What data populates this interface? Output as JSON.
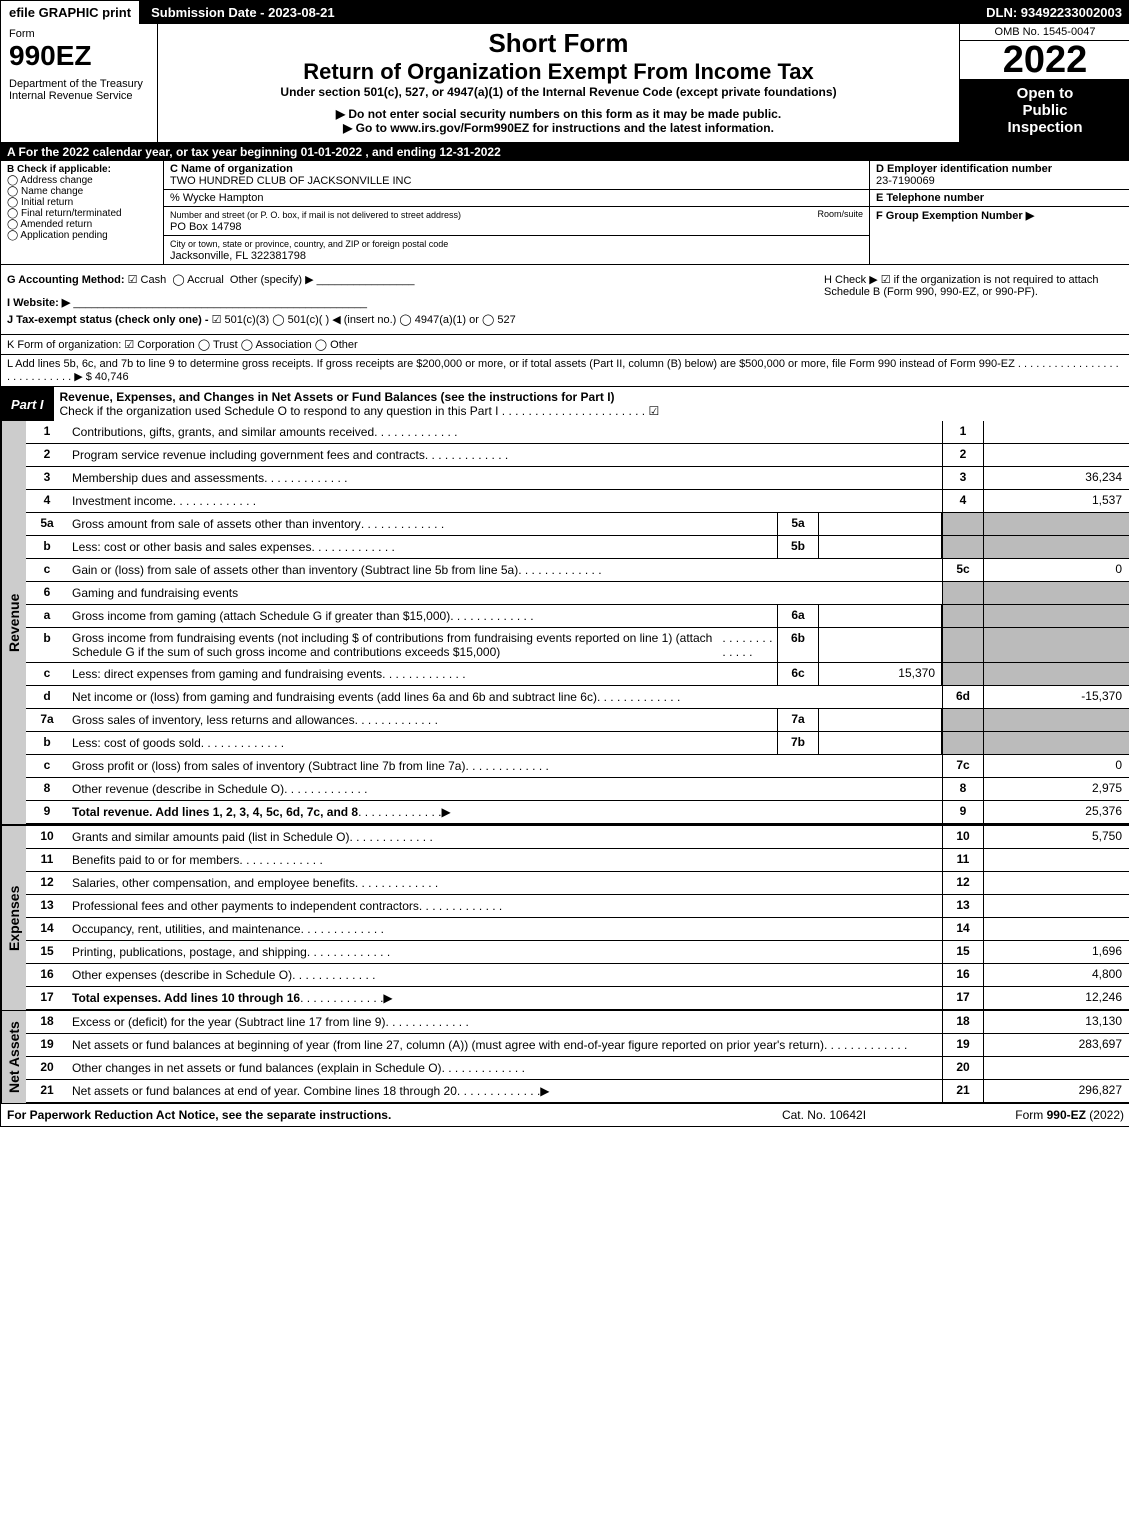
{
  "topbar": {
    "efile": "efile GRAPHIC print",
    "submission": "Submission Date - 2023-08-21",
    "dln": "DLN: 93492233002003"
  },
  "header": {
    "form_label": "Form",
    "form_num": "990EZ",
    "dept1": "Department of the Treasury",
    "dept2": "Internal Revenue Service",
    "short_form": "Short Form",
    "title": "Return of Organization Exempt From Income Tax",
    "sub1": "Under section 501(c), 527, or 4947(a)(1) of the Internal Revenue Code (except private foundations)",
    "sub2": "▶ Do not enter social security numbers on this form as it may be made public.",
    "sub3": "▶ Go to www.irs.gov/Form990EZ for instructions and the latest information.",
    "omb": "OMB No. 1545-0047",
    "year": "2022",
    "open1": "Open to",
    "open2": "Public",
    "open3": "Inspection"
  },
  "section_a": "A  For the 2022 calendar year, or tax year beginning 01-01-2022 , and ending 12-31-2022",
  "box_b": {
    "label": "B  Check if applicable:",
    "opts": [
      "Address change",
      "Name change",
      "Initial return",
      "Final return/terminated",
      "Amended return",
      "Application pending"
    ]
  },
  "box_c": {
    "name_label": "C Name of organization",
    "name": "TWO HUNDRED CLUB OF JACKSONVILLE INC",
    "care_of": "% Wycke Hampton",
    "addr_label": "Number and street (or P. O. box, if mail is not delivered to street address)",
    "addr": "PO Box 14798",
    "room_label": "Room/suite",
    "city_label": "City or town, state or province, country, and ZIP or foreign postal code",
    "city": "Jacksonville, FL  322381798"
  },
  "box_d": {
    "label": "D Employer identification number",
    "ein": "23-7190069",
    "tel_label": "E Telephone number",
    "f_label": "F Group Exemption Number  ▶"
  },
  "gh": {
    "g_label": "G Accounting Method:",
    "g_cash": "Cash",
    "g_accrual": "Accrual",
    "g_other": "Other (specify) ▶",
    "i_label": "I Website: ▶",
    "j_label": "J Tax-exempt status (check only one) -",
    "j_501c3": "501(c)(3)",
    "j_501c": "501(c)(  ) ◀ (insert no.)",
    "j_4947": "4947(a)(1) or",
    "j_527": "527",
    "h_label": "H  Check ▶ ☑ if the organization is not required to attach Schedule B (Form 990, 990-EZ, or 990-PF)."
  },
  "k_line": "K Form of organization:  ☑ Corporation  ◯ Trust  ◯ Association  ◯ Other",
  "l_line": "L Add lines 5b, 6c, and 7b to line 9 to determine gross receipts. If gross receipts are $200,000 or more, or if total assets (Part II, column (B) below) are $500,000 or more, file Form 990 instead of Form 990-EZ . . . . . . . . . . . . . . . . . . . . . . . . . . . . ▶ $ 40,746",
  "part1": {
    "tab": "Part I",
    "desc": "Revenue, Expenses, and Changes in Net Assets or Fund Balances (see the instructions for Part I)",
    "check_line": "Check if the organization used Schedule O to respond to any question in this Part I . . . . . . . . . . . . . . . . . . . . . . ☑"
  },
  "sections": {
    "revenue": "Revenue",
    "expenses": "Expenses",
    "netassets": "Net Assets"
  },
  "lines": [
    {
      "n": "1",
      "d": "Contributions, gifts, grants, and similar amounts received",
      "box": "1",
      "v": ""
    },
    {
      "n": "2",
      "d": "Program service revenue including government fees and contracts",
      "box": "2",
      "v": ""
    },
    {
      "n": "3",
      "d": "Membership dues and assessments",
      "box": "3",
      "v": "36,234"
    },
    {
      "n": "4",
      "d": "Investment income",
      "box": "4",
      "v": "1,537"
    },
    {
      "n": "5a",
      "d": "Gross amount from sale of assets other than inventory",
      "sub": "5a",
      "sv": ""
    },
    {
      "n": "b",
      "d": "Less: cost or other basis and sales expenses",
      "sub": "5b",
      "sv": ""
    },
    {
      "n": "c",
      "d": "Gain or (loss) from sale of assets other than inventory (Subtract line 5b from line 5a)",
      "box": "5c",
      "v": "0"
    },
    {
      "n": "6",
      "d": "Gaming and fundraising events"
    },
    {
      "n": "a",
      "d": "Gross income from gaming (attach Schedule G if greater than $15,000)",
      "sub": "6a",
      "sv": ""
    },
    {
      "n": "b",
      "d": "Gross income from fundraising events (not including $                      of contributions from fundraising events reported on line 1) (attach Schedule G if the sum of such gross income and contributions exceeds $15,000)",
      "sub": "6b",
      "sv": ""
    },
    {
      "n": "c",
      "d": "Less: direct expenses from gaming and fundraising events",
      "sub": "6c",
      "sv": "15,370"
    },
    {
      "n": "d",
      "d": "Net income or (loss) from gaming and fundraising events (add lines 6a and 6b and subtract line 6c)",
      "box": "6d",
      "v": "-15,370"
    },
    {
      "n": "7a",
      "d": "Gross sales of inventory, less returns and allowances",
      "sub": "7a",
      "sv": ""
    },
    {
      "n": "b",
      "d": "Less: cost of goods sold",
      "sub": "7b",
      "sv": ""
    },
    {
      "n": "c",
      "d": "Gross profit or (loss) from sales of inventory (Subtract line 7b from line 7a)",
      "box": "7c",
      "v": "0"
    },
    {
      "n": "8",
      "d": "Other revenue (describe in Schedule O)",
      "box": "8",
      "v": "2,975"
    },
    {
      "n": "9",
      "d": "Total revenue. Add lines 1, 2, 3, 4, 5c, 6d, 7c, and 8",
      "box": "9",
      "v": "25,376",
      "bold": true,
      "arrow": true
    }
  ],
  "exp_lines": [
    {
      "n": "10",
      "d": "Grants and similar amounts paid (list in Schedule O)",
      "box": "10",
      "v": "5,750"
    },
    {
      "n": "11",
      "d": "Benefits paid to or for members",
      "box": "11",
      "v": ""
    },
    {
      "n": "12",
      "d": "Salaries, other compensation, and employee benefits",
      "box": "12",
      "v": ""
    },
    {
      "n": "13",
      "d": "Professional fees and other payments to independent contractors",
      "box": "13",
      "v": ""
    },
    {
      "n": "14",
      "d": "Occupancy, rent, utilities, and maintenance",
      "box": "14",
      "v": ""
    },
    {
      "n": "15",
      "d": "Printing, publications, postage, and shipping",
      "box": "15",
      "v": "1,696"
    },
    {
      "n": "16",
      "d": "Other expenses (describe in Schedule O)",
      "box": "16",
      "v": "4,800"
    },
    {
      "n": "17",
      "d": "Total expenses. Add lines 10 through 16",
      "box": "17",
      "v": "12,246",
      "bold": true,
      "arrow": true
    }
  ],
  "na_lines": [
    {
      "n": "18",
      "d": "Excess or (deficit) for the year (Subtract line 17 from line 9)",
      "box": "18",
      "v": "13,130"
    },
    {
      "n": "19",
      "d": "Net assets or fund balances at beginning of year (from line 27, column (A)) (must agree with end-of-year figure reported on prior year's return)",
      "box": "19",
      "v": "283,697"
    },
    {
      "n": "20",
      "d": "Other changes in net assets or fund balances (explain in Schedule O)",
      "box": "20",
      "v": ""
    },
    {
      "n": "21",
      "d": "Net assets or fund balances at end of year. Combine lines 18 through 20",
      "box": "21",
      "v": "296,827",
      "arrow": true
    }
  ],
  "footer": {
    "left": "For Paperwork Reduction Act Notice, see the separate instructions.",
    "mid": "Cat. No. 10642I",
    "right": "Form 990-EZ (2022)"
  }
}
